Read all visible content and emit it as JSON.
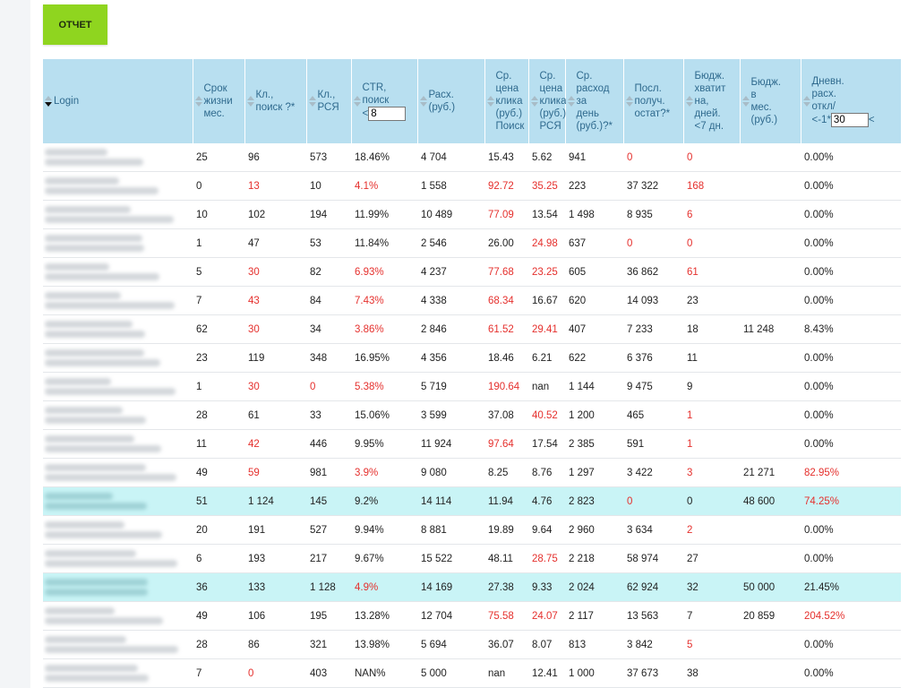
{
  "report_button": "ОТЧЕТ",
  "columns": [
    {
      "label": "Login",
      "active": true
    },
    {
      "label": "Срок\nжизни\nмес."
    },
    {
      "label": "Кл.,\nпоиск ?*"
    },
    {
      "label": "Кл.,\nРСЯ"
    },
    {
      "label": "CTR,\nпоиск\n<",
      "input": "8"
    },
    {
      "label": "Расх.\n(руб.)"
    },
    {
      "label": "Ср.\nцена\nклика\n(руб.)\nПоиск"
    },
    {
      "label": "Ср.\nцена\nклика\n(руб.)\nРСЯ"
    },
    {
      "label": "Ср.\nрасход\nза\nдень\n(руб.)?*"
    },
    {
      "label": "Посл.\nполуч.\nостат?*"
    },
    {
      "label": "Бюдж.\nхватит\nна,\nдней.\n<7 дн."
    },
    {
      "label": "Бюдж.\nв\nмес.\n(руб.)"
    },
    {
      "label": "Дневн.\nрасх.\nоткл/\n<-1*",
      "input": "30",
      "suffix": "<"
    }
  ],
  "rows": [
    {
      "cells": [
        "25",
        "96",
        "573",
        "18.46%",
        "4 704",
        "15.43",
        "5.62",
        "941",
        "0",
        "0",
        "",
        "0.00%"
      ],
      "red": [
        8,
        9
      ]
    },
    {
      "cells": [
        "0",
        "13",
        "10",
        "4.1%",
        "1 558",
        "92.72",
        "35.25",
        "223",
        "37 322",
        "168",
        "",
        "0.00%"
      ],
      "red": [
        1,
        3,
        5,
        6,
        9
      ]
    },
    {
      "cells": [
        "10",
        "102",
        "194",
        "11.99%",
        "10 489",
        "77.09",
        "13.54",
        "1 498",
        "8 935",
        "6",
        "",
        "0.00%"
      ],
      "red": [
        5,
        9
      ]
    },
    {
      "cells": [
        "1",
        "47",
        "53",
        "11.84%",
        "2 546",
        "26.00",
        "24.98",
        "637",
        "0",
        "0",
        "",
        "0.00%"
      ],
      "red": [
        6,
        8,
        9
      ]
    },
    {
      "cells": [
        "5",
        "30",
        "82",
        "6.93%",
        "4 237",
        "77.68",
        "23.25",
        "605",
        "36 862",
        "61",
        "",
        "0.00%"
      ],
      "red": [
        1,
        3,
        5,
        6,
        9
      ]
    },
    {
      "cells": [
        "7",
        "43",
        "84",
        "7.43%",
        "4 338",
        "68.34",
        "16.67",
        "620",
        "14 093",
        "23",
        "",
        "0.00%"
      ],
      "red": [
        1,
        3,
        5
      ]
    },
    {
      "cells": [
        "62",
        "30",
        "34",
        "3.86%",
        "2 846",
        "61.52",
        "29.41",
        "407",
        "7 233",
        "18",
        "11 248",
        "8.43%"
      ],
      "red": [
        1,
        3,
        5,
        6
      ]
    },
    {
      "cells": [
        "23",
        "119",
        "348",
        "16.95%",
        "4 356",
        "18.46",
        "6.21",
        "622",
        "6 376",
        "11",
        "",
        "0.00%"
      ],
      "red": []
    },
    {
      "cells": [
        "1",
        "30",
        "0",
        "5.38%",
        "5 719",
        "190.64",
        "nan",
        "1 144",
        "9 475",
        "9",
        "",
        "0.00%"
      ],
      "red": [
        1,
        2,
        3,
        5
      ]
    },
    {
      "cells": [
        "28",
        "61",
        "33",
        "15.06%",
        "3 599",
        "37.08",
        "40.52",
        "1 200",
        "465",
        "1",
        "",
        "0.00%"
      ],
      "red": [
        6,
        9
      ]
    },
    {
      "cells": [
        "11",
        "42",
        "446",
        "9.95%",
        "11 924",
        "97.64",
        "17.54",
        "2 385",
        "591",
        "1",
        "",
        "0.00%"
      ],
      "red": [
        1,
        5,
        9
      ]
    },
    {
      "cells": [
        "49",
        "59",
        "981",
        "3.9%",
        "9 080",
        "8.25",
        "8.76",
        "1 297",
        "3 422",
        "3",
        "21 271",
        "82.95%"
      ],
      "red": [
        1,
        3,
        9,
        11
      ]
    },
    {
      "cells": [
        "51",
        "1 124",
        "145",
        "9.2%",
        "14 114",
        "11.94",
        "4.76",
        "2 823",
        "0",
        "0",
        "48 600",
        "74.25%"
      ],
      "red": [
        8,
        11
      ],
      "highlight": true
    },
    {
      "cells": [
        "20",
        "191",
        "527",
        "9.94%",
        "8 881",
        "19.89",
        "9.64",
        "2 960",
        "3 634",
        "2",
        "",
        "0.00%"
      ],
      "red": [
        9
      ]
    },
    {
      "cells": [
        "6",
        "193",
        "217",
        "9.67%",
        "15 522",
        "48.11",
        "28.75",
        "2 218",
        "58 974",
        "27",
        "",
        "0.00%"
      ],
      "red": [
        6
      ]
    },
    {
      "cells": [
        "36",
        "133",
        "1 128",
        "4.9%",
        "14 169",
        "27.38",
        "9.33",
        "2 024",
        "62 924",
        "32",
        "50 000",
        "21.45%"
      ],
      "red": [
        3
      ],
      "highlight": true
    },
    {
      "cells": [
        "49",
        "106",
        "195",
        "13.28%",
        "12 704",
        "75.58",
        "24.07",
        "2 117",
        "13 563",
        "7",
        "20 859",
        "204.52%"
      ],
      "red": [
        5,
        6,
        11
      ]
    },
    {
      "cells": [
        "28",
        "86",
        "321",
        "13.98%",
        "5 694",
        "36.07",
        "8.07",
        "813",
        "3 842",
        "5",
        "",
        "0.00%"
      ],
      "red": [
        9
      ]
    },
    {
      "cells": [
        "7",
        "0",
        "403",
        "NAN%",
        "5 000",
        "nan",
        "12.41",
        "1 000",
        "37 673",
        "38",
        "",
        "0.00%"
      ],
      "red": [
        1
      ]
    }
  ],
  "colors": {
    "header_bg": "#b8dff0",
    "header_text": "#2f6a8e",
    "button_bg": "#8fd51f",
    "alert_text": "#e5302d",
    "highlight_row": "#c9f4f6"
  }
}
